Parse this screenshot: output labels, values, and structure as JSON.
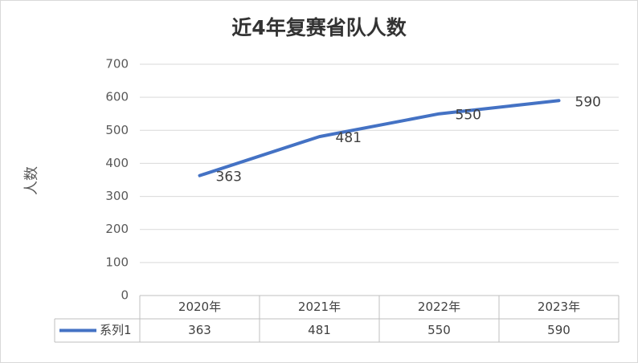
{
  "chart_data": {
    "type": "line",
    "title": "近4年复赛省队人数",
    "y_label": "人数",
    "categories": [
      "2020年",
      "2021年",
      "2022年",
      "2023年"
    ],
    "series": [
      {
        "name": "系列1",
        "color": "#4472c4",
        "values": [
          363,
          481,
          550,
          590
        ]
      }
    ],
    "ylim": [
      0,
      700
    ],
    "yticks": [
      0,
      100,
      200,
      300,
      400,
      500,
      600,
      700
    ],
    "grid": true,
    "data_labels": true,
    "data_table": true
  }
}
